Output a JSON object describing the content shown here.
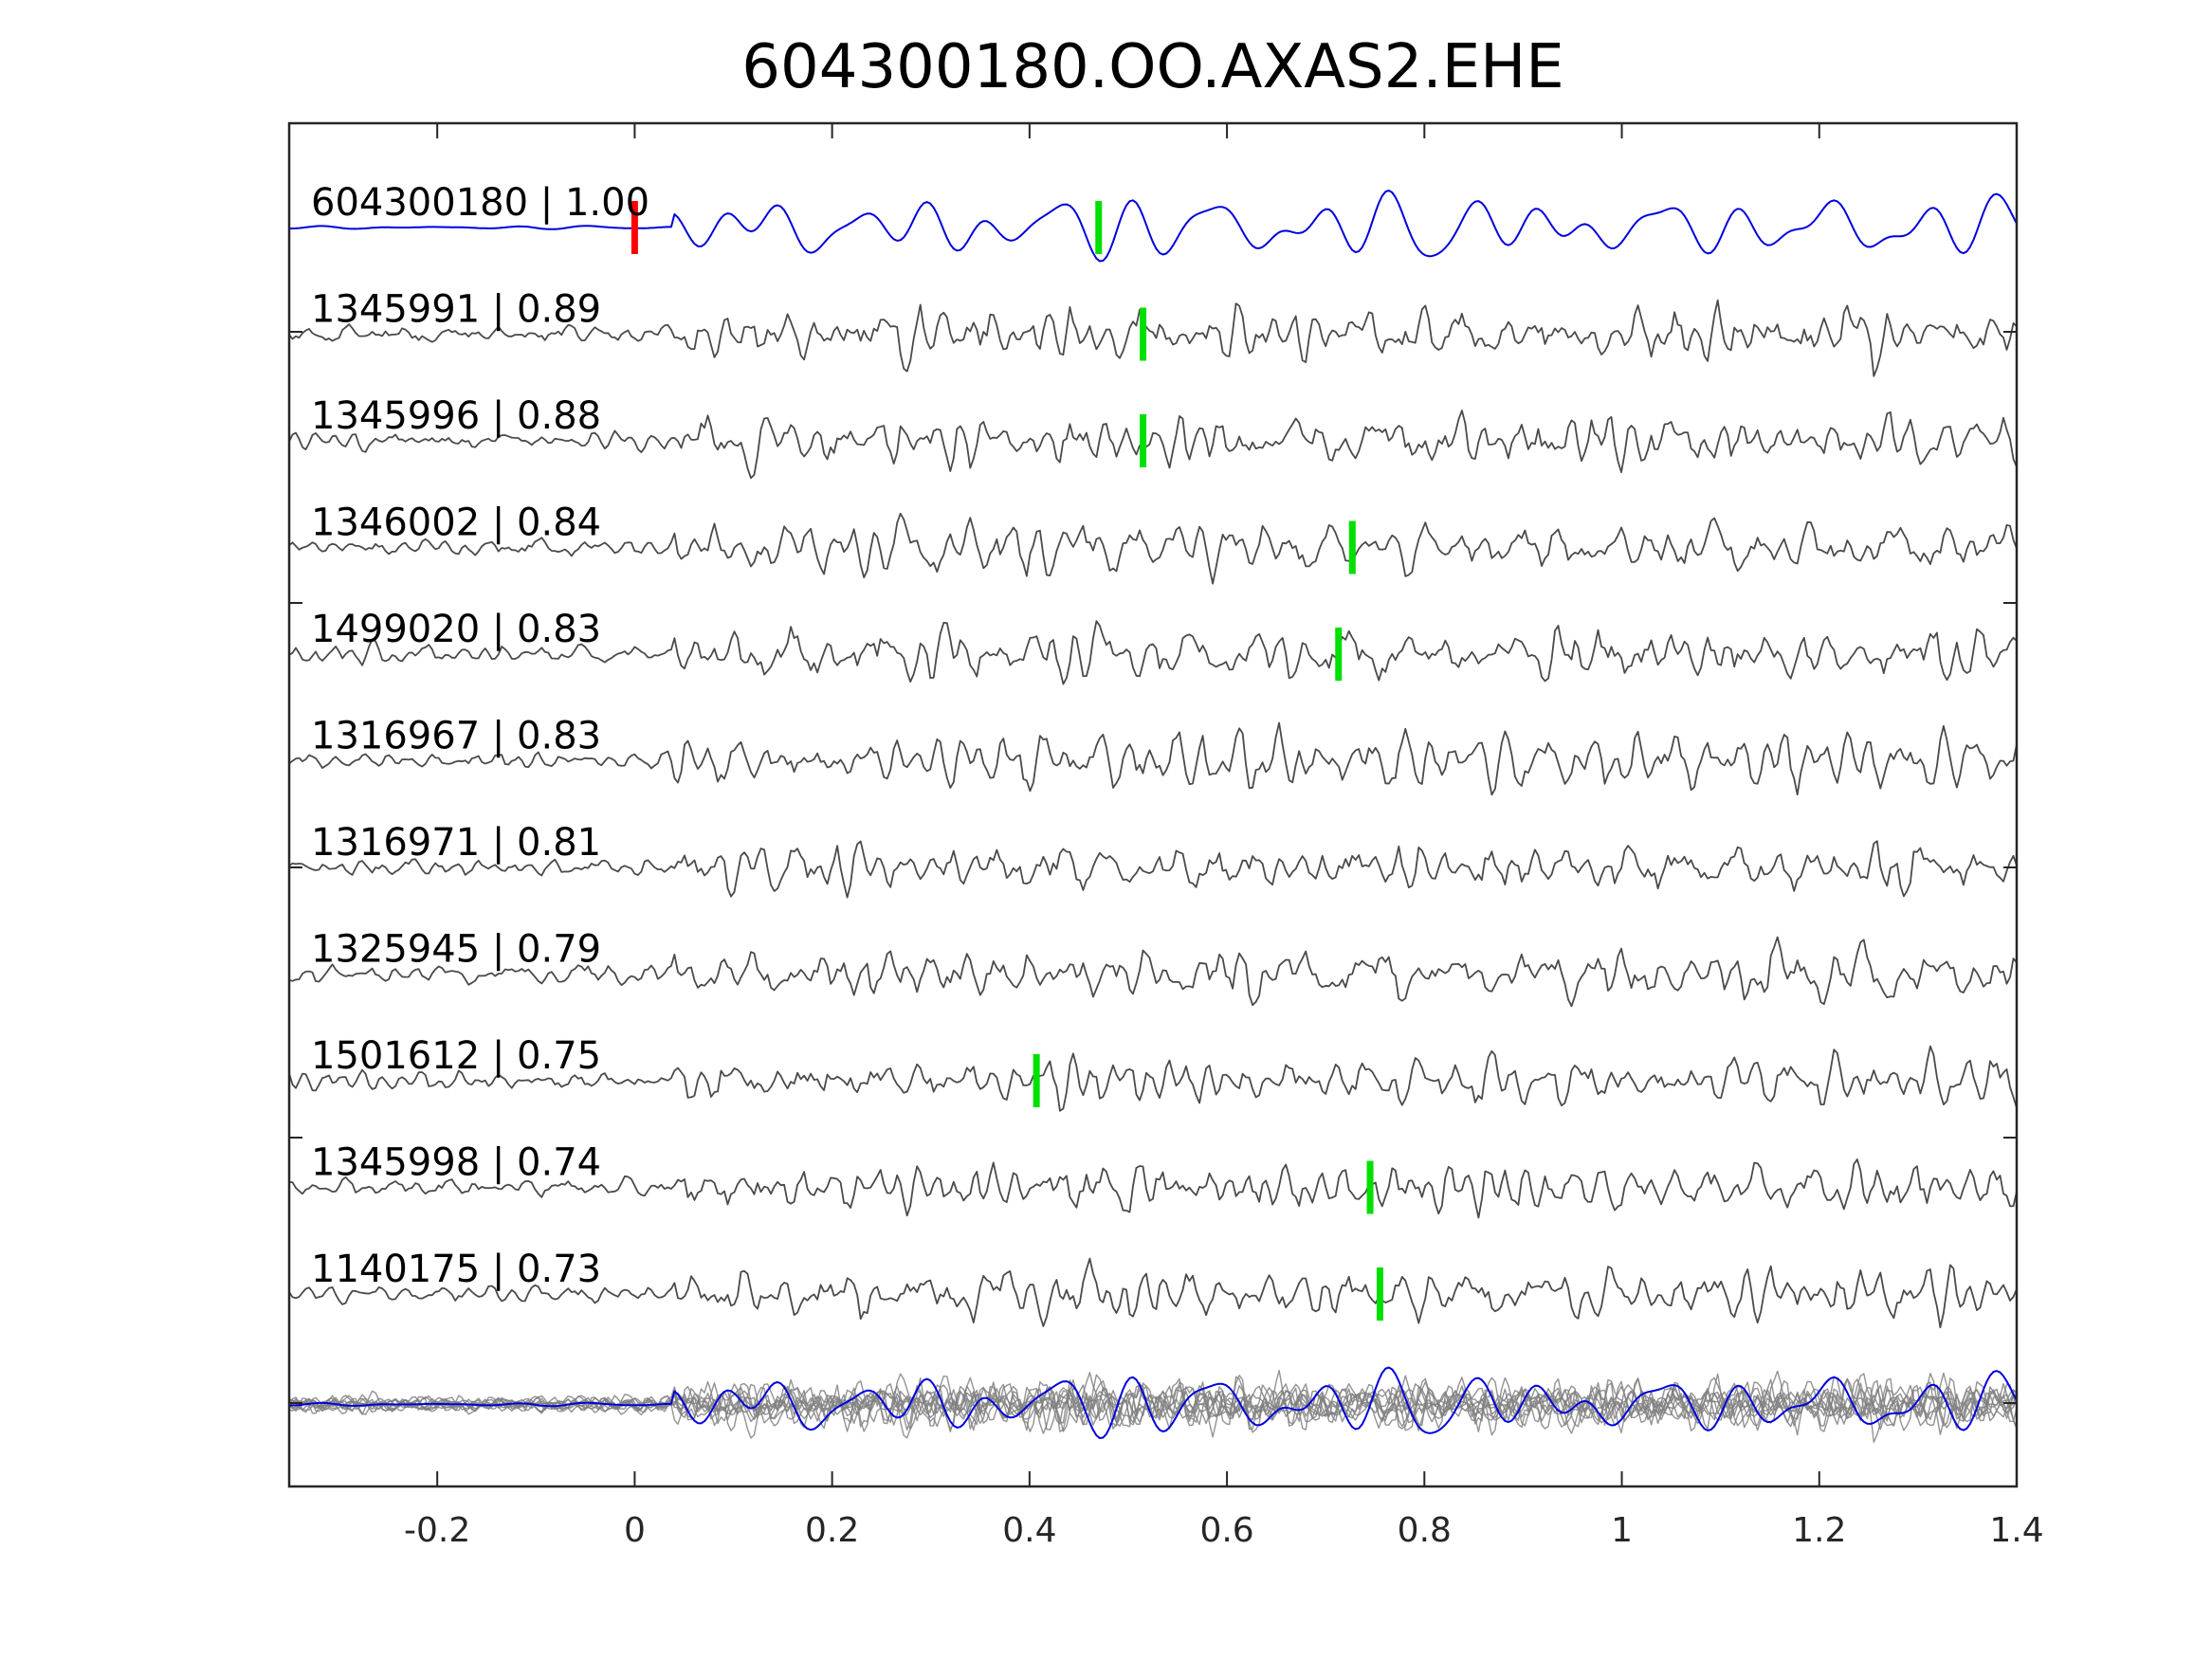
{
  "chart_data": {
    "type": "line",
    "title": "604300180.OO.AXAS2.EHE",
    "xlabel": "",
    "ylabel": "",
    "xlim": [
      -0.35,
      1.4
    ],
    "xticks": [
      -0.2,
      0,
      0.2,
      0.4,
      0.6,
      0.8,
      1,
      1.2,
      1.4
    ],
    "xtick_labels": [
      "-0.2",
      "0",
      "0.2",
      "0.4",
      "0.6",
      "0.8",
      "1",
      "1.2",
      "1.4"
    ],
    "grid": false,
    "colors": {
      "template": "#0000dd",
      "match": "#4a4a4a",
      "overlay": "#808080",
      "origin_pick": "#ff0000",
      "phase_pick": "#00e000"
    },
    "traces": [
      {
        "label": "604300180 | 1.00",
        "id": "604300180",
        "cc": 1.0,
        "role": "template",
        "picks": [
          {
            "t": 0.0,
            "color": "red"
          },
          {
            "t": 0.47,
            "color": "green"
          }
        ]
      },
      {
        "label": "1345991 | 0.89",
        "id": "1345991",
        "cc": 0.89,
        "role": "match",
        "picks": [
          {
            "t": 0.515,
            "color": "green"
          }
        ]
      },
      {
        "label": "1345996 | 0.88",
        "id": "1345996",
        "cc": 0.88,
        "role": "match",
        "picks": [
          {
            "t": 0.515,
            "color": "green"
          }
        ]
      },
      {
        "label": "1346002 | 0.84",
        "id": "1346002",
        "cc": 0.84,
        "role": "match",
        "picks": [
          {
            "t": 0.727,
            "color": "green"
          }
        ]
      },
      {
        "label": "1499020 | 0.83",
        "id": "1499020",
        "cc": 0.83,
        "role": "match",
        "picks": [
          {
            "t": 0.713,
            "color": "green"
          }
        ]
      },
      {
        "label": "1316967 | 0.83",
        "id": "1316967",
        "cc": 0.83,
        "role": "match",
        "picks": []
      },
      {
        "label": "1316971 | 0.81",
        "id": "1316971",
        "cc": 0.81,
        "role": "match",
        "picks": []
      },
      {
        "label": "1325945 | 0.79",
        "id": "1325945",
        "cc": 0.79,
        "role": "match",
        "picks": []
      },
      {
        "label": "1501612 | 0.75",
        "id": "1501612",
        "cc": 0.75,
        "role": "match",
        "picks": [
          {
            "t": 0.407,
            "color": "green"
          }
        ]
      },
      {
        "label": "1345998 | 0.74",
        "id": "1345998",
        "cc": 0.74,
        "role": "match",
        "picks": [
          {
            "t": 0.745,
            "color": "green"
          }
        ]
      },
      {
        "label": "1140175 | 0.73",
        "id": "1140175",
        "cc": 0.73,
        "role": "match",
        "picks": [
          {
            "t": 0.755,
            "color": "green"
          }
        ]
      }
    ],
    "overlay_row": true
  }
}
